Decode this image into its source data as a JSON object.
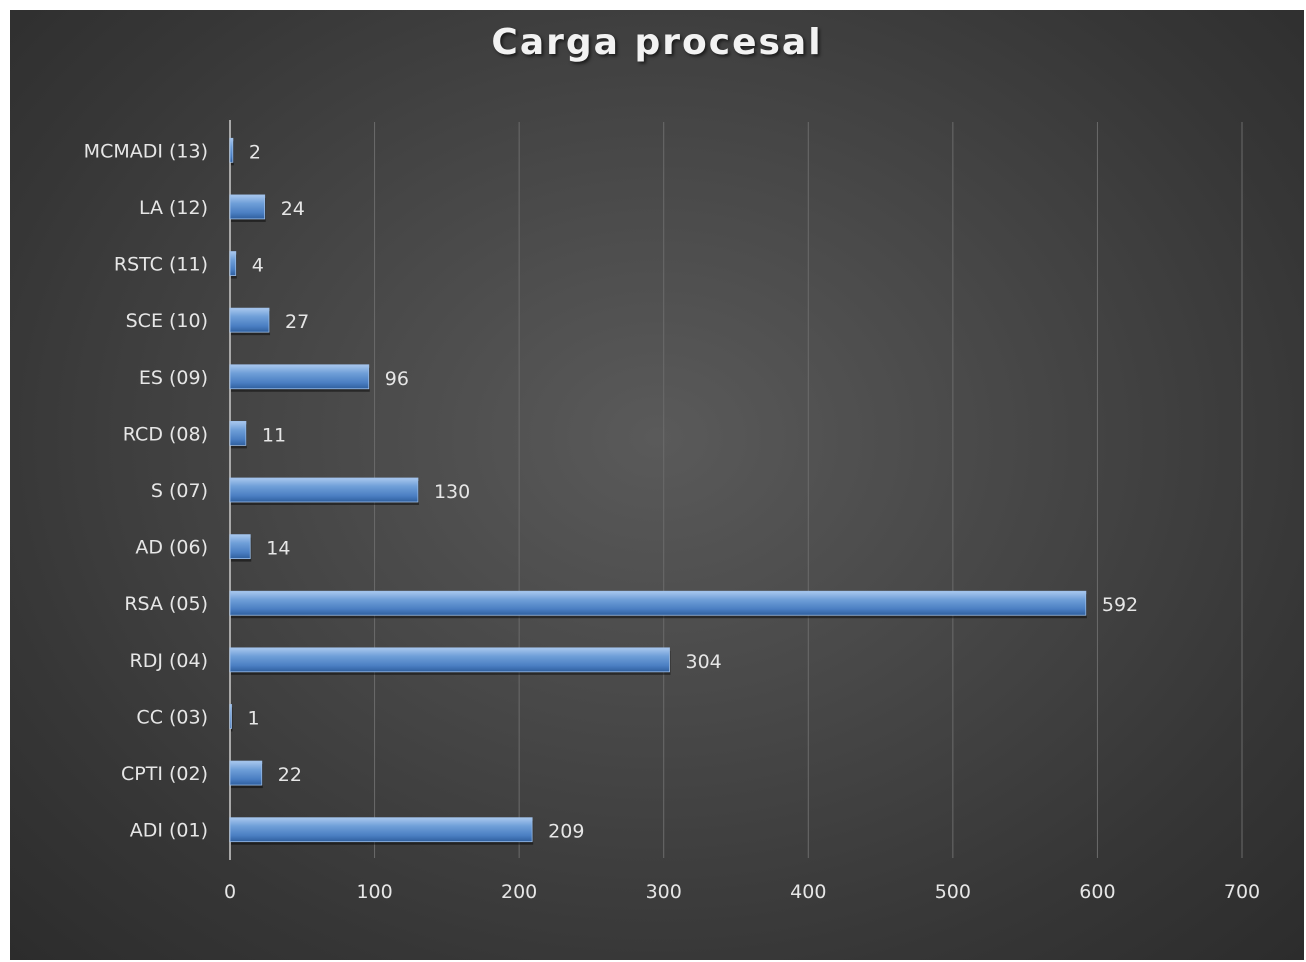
{
  "chart_data": {
    "type": "bar",
    "orientation": "horizontal",
    "title": "Carga procesal",
    "categories": [
      "ADI (01)",
      "CPTI (02)",
      "CC (03)",
      "RDJ (04)",
      "RSA (05)",
      "AD (06)",
      "S (07)",
      "RCD (08)",
      "ES (09)",
      "SCE (10)",
      "RSTC (11)",
      "LA (12)",
      "MCMADI (13)"
    ],
    "values": [
      209,
      22,
      1,
      304,
      592,
      14,
      130,
      11,
      96,
      27,
      4,
      24,
      2
    ],
    "xlim": [
      0,
      700
    ],
    "xticks": [
      0,
      100,
      200,
      300,
      400,
      500,
      600,
      700
    ],
    "grid": true,
    "legend": "none",
    "bar_color": "#5b8fd0",
    "background_color": "#404040"
  }
}
